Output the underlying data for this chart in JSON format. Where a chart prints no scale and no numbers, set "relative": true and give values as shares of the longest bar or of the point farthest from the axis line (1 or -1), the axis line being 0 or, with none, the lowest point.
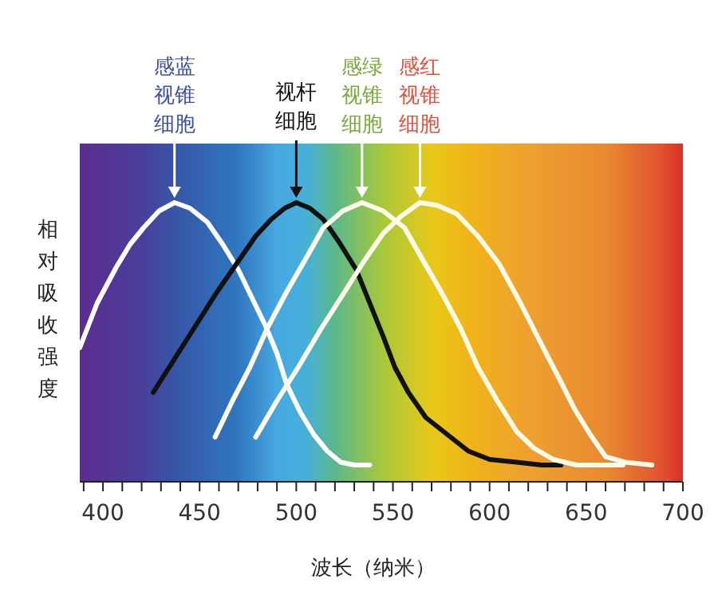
{
  "chart_data": {
    "type": "line",
    "relative": true,
    "xlabel": "波长（纳米）",
    "ylabel": "相对吸收强度",
    "xlim": [
      388,
      700
    ],
    "xticks": [
      {
        "value": 390,
        "label": null
      },
      400,
      {
        "value": 410,
        "label": null
      },
      {
        "value": 420,
        "label": null
      },
      {
        "value": 430,
        "label": null
      },
      {
        "value": 440,
        "label": null
      },
      450,
      {
        "value": 460,
        "label": null
      },
      {
        "value": 470,
        "label": null
      },
      {
        "value": 480,
        "label": null
      },
      {
        "value": 490,
        "label": null
      },
      500,
      {
        "value": 510,
        "label": null
      },
      {
        "value": 520,
        "label": null
      },
      {
        "value": 530,
        "label": null
      },
      {
        "value": 540,
        "label": null
      },
      550,
      {
        "value": 560,
        "label": null
      },
      {
        "value": 570,
        "label": null
      },
      {
        "value": 580,
        "label": null
      },
      {
        "value": 590,
        "label": null
      },
      600,
      {
        "value": 610,
        "label": null
      },
      {
        "value": 620,
        "label": null
      },
      {
        "value": 630,
        "label": null
      },
      {
        "value": 640,
        "label": null
      },
      650,
      {
        "value": 660,
        "label": null
      },
      {
        "value": 670,
        "label": null
      },
      {
        "value": 680,
        "label": null
      },
      {
        "value": 690,
        "label": null
      },
      700
    ],
    "marker": "none",
    "line_style": "solid",
    "series": [
      {
        "name": "感蓝视锥细胞",
        "color": "#ffffff",
        "x": [
          388,
          397,
          407,
          414,
          421,
          429,
          437,
          445,
          454,
          462,
          470,
          477,
          484,
          490,
          495,
          502,
          509,
          516,
          523,
          530,
          538
        ],
        "values": [
          0.48,
          0.64,
          0.77,
          0.85,
          0.91,
          0.97,
          1,
          0.98,
          0.93,
          0.85,
          0.76,
          0.66,
          0.56,
          0.46,
          0.35,
          0.25,
          0.17,
          0.11,
          0.07,
          0.06,
          0.06
        ]
      },
      {
        "name": "视杆细胞",
        "color": "#111111",
        "x": [
          426,
          437,
          448,
          459,
          470,
          479,
          487,
          494,
          500,
          507,
          514,
          522,
          531,
          538,
          545,
          551,
          558,
          567,
          578,
          589,
          600,
          614,
          627,
          637
        ],
        "values": [
          0.32,
          0.44,
          0.56,
          0.68,
          0.79,
          0.88,
          0.94,
          0.98,
          1,
          0.98,
          0.94,
          0.86,
          0.76,
          0.64,
          0.52,
          0.41,
          0.32,
          0.23,
          0.17,
          0.11,
          0.08,
          0.07,
          0.06,
          0.06
        ]
      },
      {
        "name": "感绿视锥细胞",
        "color": "#fffbe8",
        "x": [
          458,
          467,
          476,
          485,
          495,
          505,
          514,
          524,
          534,
          545,
          556,
          565,
          575,
          585,
          594,
          604,
          614,
          623,
          633,
          645,
          669
        ],
        "values": [
          0.16,
          0.29,
          0.41,
          0.55,
          0.68,
          0.8,
          0.91,
          0.97,
          1,
          0.97,
          0.91,
          0.8,
          0.68,
          0.55,
          0.41,
          0.29,
          0.18,
          0.12,
          0.08,
          0.06,
          0.06
        ]
      },
      {
        "name": "感红视锥细胞",
        "color": "#fffbe8",
        "x": [
          479,
          490,
          501,
          513,
          525,
          535,
          545,
          554,
          564,
          573,
          583,
          594,
          605,
          616,
          627,
          636,
          644,
          652,
          660,
          670,
          684
        ],
        "values": [
          0.16,
          0.29,
          0.41,
          0.55,
          0.68,
          0.79,
          0.89,
          0.95,
          1,
          0.99,
          0.96,
          0.88,
          0.78,
          0.64,
          0.49,
          0.37,
          0.26,
          0.17,
          0.09,
          0.07,
          0.06
        ]
      }
    ]
  }
}
